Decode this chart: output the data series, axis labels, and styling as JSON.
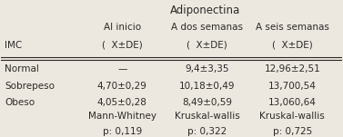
{
  "title": "Adiponectina",
  "col_headers_line1": [
    "Al inicio",
    "A dos semanas",
    "A seis semanas"
  ],
  "col_headers_line2": [
    "(  X±DE)",
    "(  X±DE)",
    "(  X±DE)"
  ],
  "row_labels": [
    "Normal",
    "Sobrepeso",
    "Obeso"
  ],
  "cell_data": [
    [
      "—",
      "9,4±3,35",
      "12,96±2,51"
    ],
    [
      "4,70±0,29",
      "10,18±0,49",
      "13,700,54"
    ],
    [
      "4,05±0,28",
      "8,49±0,59",
      "13,060,64"
    ]
  ],
  "stats_line1": [
    "Mann-Whitney",
    "Kruskal-wallis",
    "Kruskal-wallis"
  ],
  "stats_line2": [
    "p: 0,119",
    "p: 0,322",
    "p: 0,725"
  ],
  "background_color": "#ede8df",
  "text_color": "#2a2a2a",
  "font_size": 7.5,
  "title_font_size": 8.5
}
